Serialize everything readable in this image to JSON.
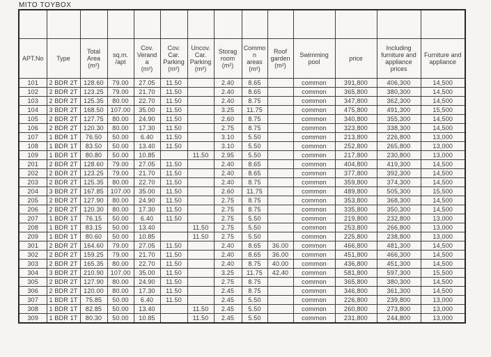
{
  "title": "MITO TOYBOX",
  "table": {
    "columns": [
      "APT.No",
      "Type",
      "Total\nArea\n(m²)",
      "sq.m.\n/apt",
      "Cov.\nVerand\na\n(m²)",
      "Cov.\nCar.\nParking\n(m²)",
      "Uncov.\nCar.\nParking\n(m²)",
      "Storag\nroom\n(m²)",
      "Commo\nn\nareas\n(m²)",
      "Roof\ngarden\n(m²)",
      "Swimming\npool",
      "price",
      "Including\nfurniture and\nappliance\nprices",
      "Furniture and\nappliance"
    ],
    "rows": [
      [
        "101",
        "2 BDR 2T",
        "128.60",
        "79.00",
        "27.05",
        "11.50",
        "",
        "2.40",
        "8.65",
        "",
        "common",
        "391,800",
        "406,300",
        "14,500"
      ],
      [
        "102",
        "2 BDR 2T",
        "123.25",
        "79.00",
        "21.70",
        "11.50",
        "",
        "2.40",
        "8.65",
        "",
        "common",
        "365,800",
        "380,300",
        "14,500"
      ],
      [
        "103",
        "2 BDR 2T",
        "125.35",
        "80.00",
        "22.70",
        "11.50",
        "",
        "2.40",
        "8.75",
        "",
        "common",
        "347,800",
        "362,300",
        "14,500"
      ],
      [
        "104",
        "3 BDR 2T",
        "168.50",
        "107.00",
        "35.00",
        "11.50",
        "",
        "3.25",
        "11.75",
        "",
        "common",
        "475,800",
        "491,300",
        "15,500"
      ],
      [
        "105",
        "2 BDR 2T",
        "127.75",
        "80.00",
        "24.90",
        "11.50",
        "",
        "2.60",
        "8.75",
        "",
        "common",
        "340,800",
        "355,300",
        "14,500"
      ],
      [
        "106",
        "2 BDR 2T",
        "120.30",
        "80.00",
        "17.30",
        "11.50",
        "",
        "2.75",
        "8.75",
        "",
        "common",
        "323,800",
        "338,300",
        "14,500"
      ],
      [
        "107",
        "1 BDR 1T",
        "76.50",
        "50.00",
        "6.40",
        "11.50",
        "",
        "3.10",
        "5.50",
        "",
        "common",
        "213,800",
        "226,800",
        "13,000"
      ],
      [
        "108",
        "1 BDR 1T",
        "83.50",
        "50.00",
        "13.40",
        "11.50",
        "",
        "3.10",
        "5.50",
        "",
        "common",
        "252,800",
        "265,800",
        "13,000"
      ],
      [
        "109",
        "1 BDR 1T",
        "80.80",
        "50.00",
        "10.85",
        "",
        "11.50",
        "2.95",
        "5.50",
        "",
        "common",
        "217,800",
        "230,800",
        "13,000"
      ],
      [
        "201",
        "2 BDR 2T",
        "128.60",
        "79.00",
        "27.05",
        "11.50",
        "",
        "2.40",
        "8.65",
        "",
        "common",
        "404,800",
        "419,300",
        "14,500"
      ],
      [
        "202",
        "2 BDR 2T",
        "123.25",
        "79.00",
        "21.70",
        "11.50",
        "",
        "2.40",
        "8.65",
        "",
        "common",
        "377,800",
        "392,300",
        "14,500"
      ],
      [
        "203",
        "2 BDR 2T",
        "125.35",
        "80.00",
        "22.70",
        "11.50",
        "",
        "2.40",
        "8.75",
        "",
        "common",
        "359,800",
        "374,300",
        "14,500"
      ],
      [
        "204",
        "3 BDR 2T",
        "167.85",
        "107.00",
        "35.00",
        "11.50",
        "",
        "2.60",
        "11.75",
        "",
        "common",
        "489,800",
        "505,300",
        "15,500"
      ],
      [
        "205",
        "2 BDR 2T",
        "127.90",
        "80.00",
        "24.90",
        "11.50",
        "",
        "2.75",
        "8.75",
        "",
        "common",
        "353,800",
        "368,300",
        "14,500"
      ],
      [
        "206",
        "2 BDR 2T",
        "120.30",
        "80.00",
        "17.30",
        "11.50",
        "",
        "2.75",
        "8.75",
        "",
        "common",
        "335,800",
        "350,300",
        "14,500"
      ],
      [
        "207",
        "1 BDR 1T",
        "76.15",
        "50.00",
        "6.40",
        "11.50",
        "",
        "2.75",
        "5.50",
        "",
        "common",
        "219,800",
        "232,800",
        "13,000"
      ],
      [
        "208",
        "1 BDR 1T",
        "83.15",
        "50.00",
        "13.40",
        "",
        "11.50",
        "2.75",
        "5.50",
        "",
        "common",
        "253,800",
        "266,800",
        "13,000"
      ],
      [
        "209",
        "1 BDR 1T",
        "80.60",
        "50.00",
        "10.85",
        "",
        "11.50",
        "2.75",
        "5.50",
        "",
        "common",
        "225,800",
        "238,800",
        "13,000"
      ],
      [
        "301",
        "2 BDR 2T",
        "164.60",
        "79.00",
        "27.05",
        "11.50",
        "",
        "2.40",
        "8.65",
        "36.00",
        "common",
        "466,800",
        "481,300",
        "14,500"
      ],
      [
        "302",
        "2 BDR 2T",
        "159.25",
        "79.00",
        "21.70",
        "11.50",
        "",
        "2.40",
        "8.65",
        "36.00",
        "common",
        "451,800",
        "466,300",
        "14,500"
      ],
      [
        "303",
        "2 BDR 2T",
        "165.35",
        "80.00",
        "22.70",
        "11.50",
        "",
        "2.40",
        "8.75",
        "40.00",
        "common",
        "436,800",
        "451,300",
        "14,500"
      ],
      [
        "304",
        "3 BDR 2T",
        "210.90",
        "107.00",
        "35.00",
        "11.50",
        "",
        "3.25",
        "11.75",
        "42.40",
        "common",
        "581,800",
        "597,300",
        "15,500"
      ],
      [
        "305",
        "2 BDR 2T",
        "127.90",
        "80.00",
        "24.90",
        "11.50",
        "",
        "2.75",
        "8.75",
        "",
        "common",
        "365,800",
        "380,300",
        "14,500"
      ],
      [
        "306",
        "2 BDR 2T",
        "120.00",
        "80.00",
        "17.30",
        "11.50",
        "",
        "2.45",
        "8.75",
        "",
        "common",
        "346,800",
        "361,300",
        "14,500"
      ],
      [
        "307",
        "1 BDR 1T",
        "75.85",
        "50.00",
        "6.40",
        "11.50",
        "",
        "2.45",
        "5.50",
        "",
        "common",
        "226,800",
        "239,800",
        "13,000"
      ],
      [
        "308",
        "1 BDR 1T",
        "82.85",
        "50.00",
        "13.40",
        "",
        "11.50",
        "2.45",
        "5.50",
        "",
        "common",
        "260,800",
        "273,800",
        "13,000"
      ],
      [
        "309",
        "1 BDR 1T",
        "80.30",
        "50.00",
        "10.85",
        "",
        "11.50",
        "2.45",
        "5.50",
        "",
        "common",
        "231,800",
        "244,800",
        "13,000"
      ]
    ]
  }
}
